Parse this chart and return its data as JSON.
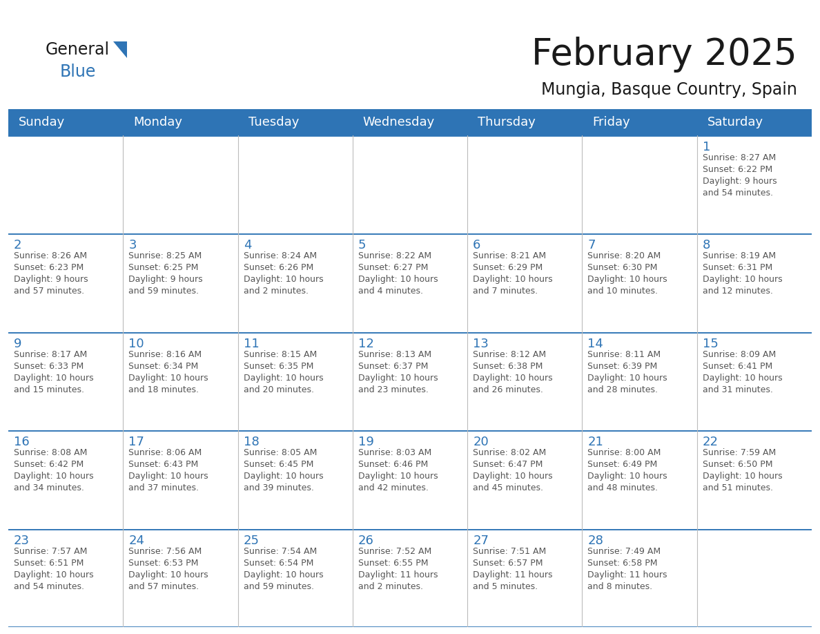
{
  "title": "February 2025",
  "subtitle": "Mungia, Basque Country, Spain",
  "header_bg": "#2E74B5",
  "header_text_color": "#FFFFFF",
  "cell_border_color": "#2E74B5",
  "day_number_color": "#2E74B5",
  "info_text_color": "#555555",
  "bg_color": "#FFFFFF",
  "grid_line_color": "#BBBBBB",
  "days_of_week": [
    "Sunday",
    "Monday",
    "Tuesday",
    "Wednesday",
    "Thursday",
    "Friday",
    "Saturday"
  ],
  "calendar_data": [
    [
      null,
      null,
      null,
      null,
      null,
      null,
      {
        "day": "1",
        "sunrise": "8:27 AM",
        "sunset": "6:22 PM",
        "daylight": "9 hours\nand 54 minutes."
      }
    ],
    [
      {
        "day": "2",
        "sunrise": "8:26 AM",
        "sunset": "6:23 PM",
        "daylight": "9 hours\nand 57 minutes."
      },
      {
        "day": "3",
        "sunrise": "8:25 AM",
        "sunset": "6:25 PM",
        "daylight": "9 hours\nand 59 minutes."
      },
      {
        "day": "4",
        "sunrise": "8:24 AM",
        "sunset": "6:26 PM",
        "daylight": "10 hours\nand 2 minutes."
      },
      {
        "day": "5",
        "sunrise": "8:22 AM",
        "sunset": "6:27 PM",
        "daylight": "10 hours\nand 4 minutes."
      },
      {
        "day": "6",
        "sunrise": "8:21 AM",
        "sunset": "6:29 PM",
        "daylight": "10 hours\nand 7 minutes."
      },
      {
        "day": "7",
        "sunrise": "8:20 AM",
        "sunset": "6:30 PM",
        "daylight": "10 hours\nand 10 minutes."
      },
      {
        "day": "8",
        "sunrise": "8:19 AM",
        "sunset": "6:31 PM",
        "daylight": "10 hours\nand 12 minutes."
      }
    ],
    [
      {
        "day": "9",
        "sunrise": "8:17 AM",
        "sunset": "6:33 PM",
        "daylight": "10 hours\nand 15 minutes."
      },
      {
        "day": "10",
        "sunrise": "8:16 AM",
        "sunset": "6:34 PM",
        "daylight": "10 hours\nand 18 minutes."
      },
      {
        "day": "11",
        "sunrise": "8:15 AM",
        "sunset": "6:35 PM",
        "daylight": "10 hours\nand 20 minutes."
      },
      {
        "day": "12",
        "sunrise": "8:13 AM",
        "sunset": "6:37 PM",
        "daylight": "10 hours\nand 23 minutes."
      },
      {
        "day": "13",
        "sunrise": "8:12 AM",
        "sunset": "6:38 PM",
        "daylight": "10 hours\nand 26 minutes."
      },
      {
        "day": "14",
        "sunrise": "8:11 AM",
        "sunset": "6:39 PM",
        "daylight": "10 hours\nand 28 minutes."
      },
      {
        "day": "15",
        "sunrise": "8:09 AM",
        "sunset": "6:41 PM",
        "daylight": "10 hours\nand 31 minutes."
      }
    ],
    [
      {
        "day": "16",
        "sunrise": "8:08 AM",
        "sunset": "6:42 PM",
        "daylight": "10 hours\nand 34 minutes."
      },
      {
        "day": "17",
        "sunrise": "8:06 AM",
        "sunset": "6:43 PM",
        "daylight": "10 hours\nand 37 minutes."
      },
      {
        "day": "18",
        "sunrise": "8:05 AM",
        "sunset": "6:45 PM",
        "daylight": "10 hours\nand 39 minutes."
      },
      {
        "day": "19",
        "sunrise": "8:03 AM",
        "sunset": "6:46 PM",
        "daylight": "10 hours\nand 42 minutes."
      },
      {
        "day": "20",
        "sunrise": "8:02 AM",
        "sunset": "6:47 PM",
        "daylight": "10 hours\nand 45 minutes."
      },
      {
        "day": "21",
        "sunrise": "8:00 AM",
        "sunset": "6:49 PM",
        "daylight": "10 hours\nand 48 minutes."
      },
      {
        "day": "22",
        "sunrise": "7:59 AM",
        "sunset": "6:50 PM",
        "daylight": "10 hours\nand 51 minutes."
      }
    ],
    [
      {
        "day": "23",
        "sunrise": "7:57 AM",
        "sunset": "6:51 PM",
        "daylight": "10 hours\nand 54 minutes."
      },
      {
        "day": "24",
        "sunrise": "7:56 AM",
        "sunset": "6:53 PM",
        "daylight": "10 hours\nand 57 minutes."
      },
      {
        "day": "25",
        "sunrise": "7:54 AM",
        "sunset": "6:54 PM",
        "daylight": "10 hours\nand 59 minutes."
      },
      {
        "day": "26",
        "sunrise": "7:52 AM",
        "sunset": "6:55 PM",
        "daylight": "11 hours\nand 2 minutes."
      },
      {
        "day": "27",
        "sunrise": "7:51 AM",
        "sunset": "6:57 PM",
        "daylight": "11 hours\nand 5 minutes."
      },
      {
        "day": "28",
        "sunrise": "7:49 AM",
        "sunset": "6:58 PM",
        "daylight": "11 hours\nand 8 minutes."
      },
      null
    ]
  ],
  "title_fontsize": 38,
  "subtitle_fontsize": 17,
  "header_fontsize": 13,
  "day_num_fontsize": 13,
  "info_fontsize": 9,
  "logo_general_color": "#1a1a1a",
  "logo_blue_color": "#2E74B5",
  "logo_triangle_color": "#2E74B5",
  "logo_general_fontsize": 17,
  "logo_blue_fontsize": 17
}
